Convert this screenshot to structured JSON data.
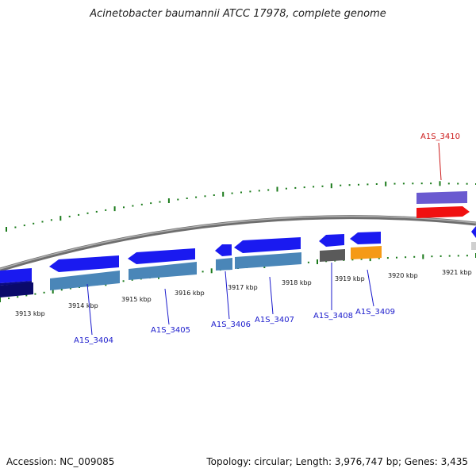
{
  "title": "Acinetobacter baumannii ATCC 17978, complete genome",
  "footer": {
    "accession": "Accession: NC_009085",
    "summary": "Topology: circular; Length: 3,976,747 bp; Genes: 3,435"
  },
  "colors": {
    "backbone": "#8a8a8a",
    "tick_green": "#1a7a1a",
    "gene_label": "#1a1acc",
    "gene_label_red": "#cc1a1a",
    "blue": "#1a1af0",
    "steel": "#4a86b8",
    "navy": "#0a0a6a",
    "gray": "#5a5a5a",
    "orange": "#f59a16",
    "violet": "#6a5ad0",
    "red": "#f01010"
  },
  "scale_labels": [
    "3913 kbp",
    "3914 kbp",
    "3915 kbp",
    "3916 kbp",
    "3917 kbp",
    "3918 kbp",
    "3919 kbp",
    "3920 kbp",
    "3921 kbp"
  ],
  "genes": [
    {
      "label": "A1S_3404",
      "color": "blue"
    },
    {
      "label": "A1S_3405",
      "color": "blue"
    },
    {
      "label": "A1S_3406",
      "color": "blue"
    },
    {
      "label": "A1S_3407",
      "color": "blue"
    },
    {
      "label": "A1S_3408",
      "color": "blue"
    },
    {
      "label": "A1S_3409",
      "color": "blue"
    },
    {
      "label": "A1S_3410",
      "color": "red"
    }
  ]
}
